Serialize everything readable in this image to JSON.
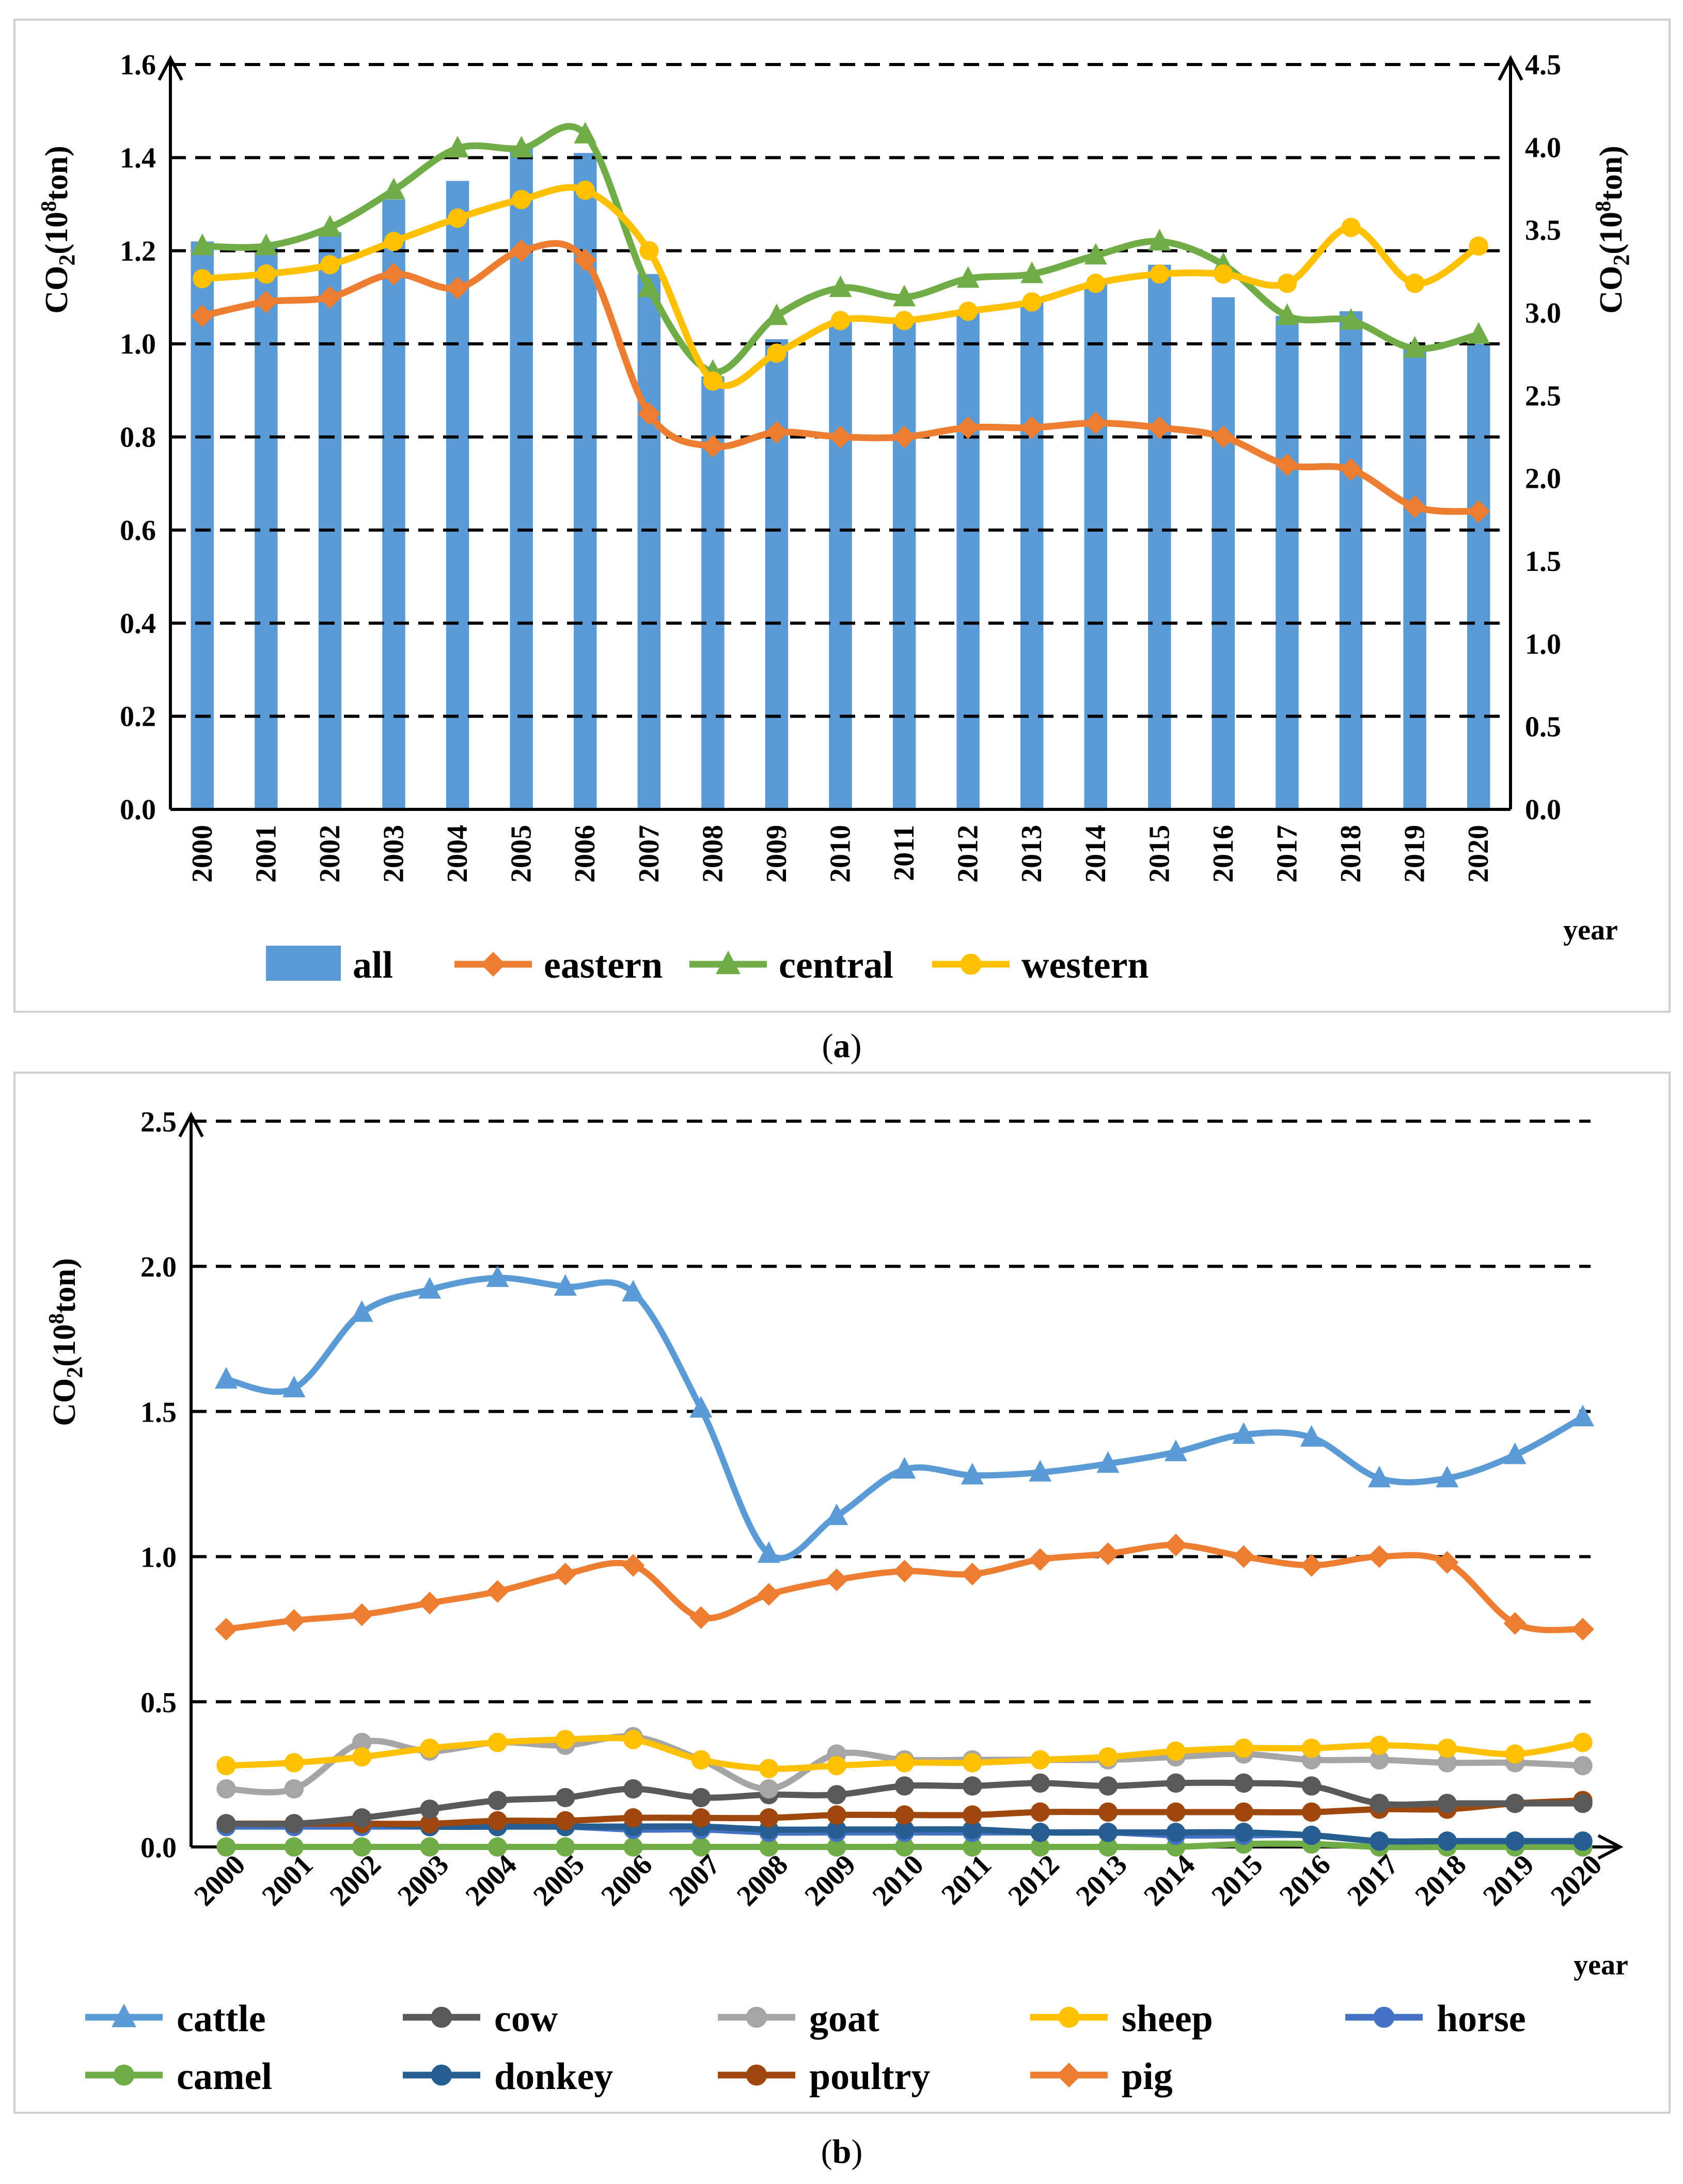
{
  "chart_data": [
    {
      "type": "bar",
      "caption": "a",
      "categories": [
        "2000",
        "2001",
        "2002",
        "2003",
        "2004",
        "2005",
        "2006",
        "2007",
        "2008",
        "2009",
        "2010",
        "2011",
        "2012",
        "2013",
        "2014",
        "2015",
        "2016",
        "2017",
        "2018",
        "2019",
        "2020"
      ],
      "ylabel": "CO2(10⁸ton)",
      "y2label": "CO2(10⁸ton)",
      "xlabel": "year",
      "ylim": [
        0,
        1.6
      ],
      "y2lim": [
        0,
        4.5
      ],
      "yticks": [
        "0.0",
        "0.2",
        "0.4",
        "0.6",
        "0.8",
        "1.0",
        "1.2",
        "1.4",
        "1.6"
      ],
      "y2ticks": [
        "0.0",
        "0.5",
        "1.0",
        "1.5",
        "2.0",
        "2.5",
        "3.0",
        "3.5",
        "4.0",
        "4.5"
      ],
      "grid": true,
      "legend": "bottom",
      "series": [
        {
          "name": "all",
          "kind": "bar",
          "axis": "left",
          "color": "#5b9bd5",
          "values": [
            1.22,
            1.21,
            1.24,
            1.31,
            1.35,
            1.42,
            1.41,
            1.15,
            0.93,
            1.01,
            1.05,
            1.05,
            1.07,
            1.09,
            1.13,
            1.17,
            1.1,
            1.06,
            1.07,
            0.99,
            1.0
          ]
        },
        {
          "name": "eastern",
          "kind": "line",
          "axis": "left",
          "color": "#ed7d31",
          "marker": "diamond",
          "values": [
            1.06,
            1.09,
            1.1,
            1.15,
            1.12,
            1.2,
            1.18,
            0.85,
            0.78,
            0.81,
            0.8,
            0.8,
            0.82,
            0.82,
            0.83,
            0.82,
            0.8,
            0.74,
            0.73,
            0.65,
            0.64
          ]
        },
        {
          "name": "central",
          "kind": "line",
          "axis": "left",
          "color": "#70ad47",
          "marker": "triangle",
          "values": [
            1.21,
            1.21,
            1.25,
            1.33,
            1.42,
            1.42,
            1.45,
            1.12,
            0.94,
            1.06,
            1.12,
            1.1,
            1.14,
            1.15,
            1.19,
            1.22,
            1.17,
            1.06,
            1.05,
            0.99,
            1.02
          ]
        },
        {
          "name": "western",
          "kind": "line",
          "axis": "left",
          "color": "#ffc000",
          "marker": "circle",
          "values": [
            1.14,
            1.15,
            1.17,
            1.22,
            1.27,
            1.31,
            1.33,
            1.2,
            0.92,
            0.98,
            1.05,
            1.05,
            1.07,
            1.09,
            1.13,
            1.15,
            1.15,
            1.13,
            1.25,
            1.13,
            1.21
          ]
        }
      ]
    },
    {
      "type": "line",
      "caption": "b",
      "categories": [
        "2000",
        "2001",
        "2002",
        "2003",
        "2004",
        "2005",
        "2006",
        "2007",
        "2008",
        "2009",
        "2010",
        "2011",
        "2012",
        "2013",
        "2014",
        "2015",
        "2016",
        "2017",
        "2018",
        "2019",
        "2020"
      ],
      "ylabel": "CO2(10⁸ton)",
      "xlabel": "year",
      "ylim": [
        0,
        2.5
      ],
      "yticks": [
        "0.0",
        "0.5",
        "1.0",
        "1.5",
        "2.0",
        "2.5"
      ],
      "grid": true,
      "legend": "bottom",
      "series": [
        {
          "name": "cattle",
          "color": "#5b9bd5",
          "marker": "triangle",
          "values": [
            1.61,
            1.58,
            1.84,
            1.92,
            1.96,
            1.93,
            1.91,
            1.51,
            1.01,
            1.14,
            1.3,
            1.28,
            1.29,
            1.32,
            1.36,
            1.42,
            1.41,
            1.27,
            1.27,
            1.35,
            1.48
          ]
        },
        {
          "name": "cow",
          "color": "#595959",
          "marker": "circle",
          "values": [
            0.08,
            0.08,
            0.1,
            0.13,
            0.16,
            0.17,
            0.2,
            0.17,
            0.18,
            0.18,
            0.21,
            0.21,
            0.22,
            0.21,
            0.22,
            0.22,
            0.21,
            0.15,
            0.15,
            0.15,
            0.15
          ]
        },
        {
          "name": "goat",
          "color": "#a5a5a5",
          "marker": "circle",
          "values": [
            0.2,
            0.2,
            0.36,
            0.33,
            0.36,
            0.35,
            0.38,
            0.3,
            0.2,
            0.32,
            0.3,
            0.3,
            0.3,
            0.3,
            0.31,
            0.32,
            0.3,
            0.3,
            0.29,
            0.29,
            0.28
          ]
        },
        {
          "name": "sheep",
          "color": "#ffc000",
          "marker": "circle",
          "values": [
            0.28,
            0.29,
            0.31,
            0.34,
            0.36,
            0.37,
            0.37,
            0.3,
            0.27,
            0.28,
            0.29,
            0.29,
            0.3,
            0.31,
            0.33,
            0.34,
            0.34,
            0.35,
            0.34,
            0.32,
            0.36
          ]
        },
        {
          "name": "horse",
          "color": "#4472c4",
          "marker": "circle",
          "values": [
            0.07,
            0.07,
            0.07,
            0.07,
            0.07,
            0.07,
            0.06,
            0.06,
            0.05,
            0.05,
            0.05,
            0.05,
            0.05,
            0.05,
            0.04,
            0.04,
            0.04,
            0.02,
            0.02,
            0.02,
            0.02
          ]
        },
        {
          "name": "camel",
          "color": "#70ad47",
          "marker": "circle",
          "values": [
            0.0,
            0.0,
            0.0,
            0.0,
            0.0,
            0.0,
            0.0,
            0.0,
            0.0,
            0.0,
            0.0,
            0.0,
            0.0,
            0.0,
            0.0,
            0.01,
            0.01,
            0.0,
            0.0,
            0.0,
            0.0
          ]
        },
        {
          "name": "donkey",
          "color": "#255e91",
          "marker": "circle",
          "values": [
            0.08,
            0.08,
            0.08,
            0.07,
            0.07,
            0.07,
            0.07,
            0.07,
            0.06,
            0.06,
            0.06,
            0.06,
            0.05,
            0.05,
            0.05,
            0.05,
            0.04,
            0.02,
            0.02,
            0.02,
            0.02
          ]
        },
        {
          "name": "poultry",
          "color": "#9e480e",
          "marker": "circle",
          "values": [
            0.08,
            0.08,
            0.08,
            0.08,
            0.09,
            0.09,
            0.1,
            0.1,
            0.1,
            0.11,
            0.11,
            0.11,
            0.12,
            0.12,
            0.12,
            0.12,
            0.12,
            0.13,
            0.13,
            0.15,
            0.16
          ]
        },
        {
          "name": "pig",
          "color": "#ed7d31",
          "marker": "diamond",
          "values": [
            0.75,
            0.78,
            0.8,
            0.84,
            0.88,
            0.94,
            0.97,
            0.79,
            0.87,
            0.92,
            0.95,
            0.94,
            0.99,
            1.01,
            1.04,
            1.0,
            0.97,
            1.0,
            0.98,
            0.77,
            0.75
          ]
        }
      ]
    }
  ]
}
